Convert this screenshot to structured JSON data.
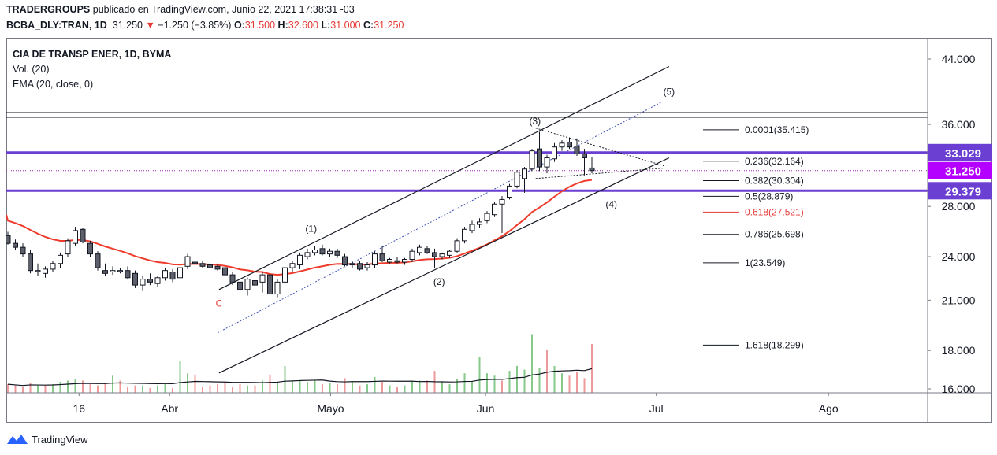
{
  "header": {
    "author": "TRADERGROUPS",
    "published": "publicado en TradingView.com, Junio 22, 2021 17:38:31 -03",
    "symbol": "BCBA_DLY:TRAN, 1D",
    "last": "31.250",
    "change": "−1.250 (−3.85%)",
    "o_label": "O:",
    "o": "31.500",
    "h_label": "H:",
    "h": "32.600",
    "l_label": "L:",
    "l": "31.000",
    "c_label": "C:",
    "c": "31.250"
  },
  "legend": {
    "title": "CIA DE TRANSP ENER, 1D, BYMA",
    "vol": "Vol. (20)",
    "ema": "EMA (20, close, 0)"
  },
  "footer": {
    "brand": "TradingView"
  },
  "colors": {
    "up": "#ffffff",
    "down": "#5d606b",
    "ema": "#ef3b2c",
    "vol_up": "#86c98b",
    "vol_down": "#ef9a9a",
    "level": "#6a3fd1",
    "price_badge": "#b400ff",
    "wave_c": "#e53935"
  },
  "chart_data": {
    "type": "candlestick",
    "y_axis_labels": [
      "44.000",
      "36.000",
      "28.000",
      "24.000",
      "21.000",
      "18.000",
      "16.000"
    ],
    "x_axis_labels": [
      "16",
      "Abr",
      "Mayo",
      "Jun",
      "Jul",
      "Ago"
    ],
    "price_badges": [
      {
        "label": "33.029",
        "value": 33.029
      },
      {
        "label": "31.250",
        "value": 31.25
      },
      {
        "label": "29.379",
        "value": 29.379
      }
    ],
    "fib_levels": [
      {
        "label": "0.0001(35.415)",
        "value": 35.415
      },
      {
        "label": "0.236(32.164)",
        "value": 32.164
      },
      {
        "label": "0.382(30.304)",
        "value": 30.304
      },
      {
        "label": "0.5(28.879)",
        "value": 28.879
      },
      {
        "label": "0.618(27.521)",
        "value": 27.521
      },
      {
        "label": "0.786(25.698)",
        "value": 25.698
      },
      {
        "label": "1(23.549)",
        "value": 23.549
      },
      {
        "label": "1.618(18.299)",
        "value": 18.299
      }
    ],
    "wave_labels": [
      "(1)",
      "(2)",
      "(3)",
      "(4)",
      "(5)",
      "C"
    ],
    "candles": [
      {
        "o": 25.6,
        "h": 25.9,
        "l": 24.9,
        "c": 25.0
      },
      {
        "o": 25.0,
        "h": 25.3,
        "l": 24.5,
        "c": 24.7
      },
      {
        "o": 24.7,
        "h": 25.0,
        "l": 24.0,
        "c": 24.2
      },
      {
        "o": 24.2,
        "h": 24.5,
        "l": 22.8,
        "c": 23.0
      },
      {
        "o": 23.0,
        "h": 23.5,
        "l": 22.6,
        "c": 22.9
      },
      {
        "o": 22.8,
        "h": 23.3,
        "l": 22.5,
        "c": 23.1
      },
      {
        "o": 23.1,
        "h": 23.7,
        "l": 22.9,
        "c": 23.5
      },
      {
        "o": 23.5,
        "h": 24.3,
        "l": 23.2,
        "c": 24.1
      },
      {
        "o": 24.2,
        "h": 25.4,
        "l": 24.0,
        "c": 25.2
      },
      {
        "o": 25.0,
        "h": 26.3,
        "l": 24.8,
        "c": 26.0
      },
      {
        "o": 26.1,
        "h": 26.2,
        "l": 25.0,
        "c": 25.1
      },
      {
        "o": 25.0,
        "h": 25.2,
        "l": 24.0,
        "c": 24.2
      },
      {
        "o": 24.2,
        "h": 24.4,
        "l": 23.0,
        "c": 23.2
      },
      {
        "o": 23.0,
        "h": 23.5,
        "l": 22.6,
        "c": 22.8
      },
      {
        "o": 22.9,
        "h": 23.3,
        "l": 22.7,
        "c": 23.0
      },
      {
        "o": 23.0,
        "h": 23.2,
        "l": 22.8,
        "c": 22.9
      },
      {
        "o": 23.0,
        "h": 23.3,
        "l": 22.4,
        "c": 22.5
      },
      {
        "o": 22.8,
        "h": 23.0,
        "l": 21.8,
        "c": 22.0
      },
      {
        "o": 22.0,
        "h": 22.6,
        "l": 21.6,
        "c": 22.4
      },
      {
        "o": 22.4,
        "h": 22.8,
        "l": 22.0,
        "c": 22.2
      },
      {
        "o": 22.1,
        "h": 22.6,
        "l": 21.9,
        "c": 22.5
      },
      {
        "o": 22.5,
        "h": 23.2,
        "l": 22.3,
        "c": 23.0
      },
      {
        "o": 22.9,
        "h": 23.1,
        "l": 22.2,
        "c": 22.4
      },
      {
        "o": 22.5,
        "h": 23.4,
        "l": 22.3,
        "c": 23.2
      },
      {
        "o": 23.3,
        "h": 24.2,
        "l": 23.1,
        "c": 24.0
      },
      {
        "o": 23.6,
        "h": 23.9,
        "l": 23.3,
        "c": 23.5
      },
      {
        "o": 23.5,
        "h": 23.7,
        "l": 23.2,
        "c": 23.3
      },
      {
        "o": 23.4,
        "h": 23.6,
        "l": 23.1,
        "c": 23.2
      },
      {
        "o": 23.3,
        "h": 23.5,
        "l": 23.0,
        "c": 23.1
      },
      {
        "o": 23.2,
        "h": 23.4,
        "l": 22.6,
        "c": 22.7
      },
      {
        "o": 22.7,
        "h": 22.9,
        "l": 22.0,
        "c": 22.2
      },
      {
        "o": 22.2,
        "h": 22.5,
        "l": 21.5,
        "c": 21.7
      },
      {
        "o": 21.7,
        "h": 22.5,
        "l": 21.3,
        "c": 22.4
      },
      {
        "o": 22.3,
        "h": 22.6,
        "l": 21.8,
        "c": 22.0
      },
      {
        "o": 22.2,
        "h": 22.9,
        "l": 21.5,
        "c": 22.7
      },
      {
        "o": 22.7,
        "h": 22.8,
        "l": 21.1,
        "c": 21.4
      },
      {
        "o": 21.4,
        "h": 22.4,
        "l": 21.2,
        "c": 22.2
      },
      {
        "o": 22.2,
        "h": 23.4,
        "l": 22.0,
        "c": 23.2
      },
      {
        "o": 23.2,
        "h": 23.7,
        "l": 22.9,
        "c": 23.5
      },
      {
        "o": 23.4,
        "h": 24.3,
        "l": 23.1,
        "c": 24.1
      },
      {
        "o": 24.0,
        "h": 24.6,
        "l": 23.8,
        "c": 24.3
      },
      {
        "o": 24.3,
        "h": 24.8,
        "l": 24.1,
        "c": 24.5
      },
      {
        "o": 24.6,
        "h": 24.9,
        "l": 24.1,
        "c": 24.2
      },
      {
        "o": 24.2,
        "h": 24.6,
        "l": 24.0,
        "c": 24.4
      },
      {
        "o": 24.4,
        "h": 24.6,
        "l": 23.9,
        "c": 24.1
      },
      {
        "o": 24.0,
        "h": 24.2,
        "l": 23.3,
        "c": 23.4
      },
      {
        "o": 23.4,
        "h": 23.7,
        "l": 23.2,
        "c": 23.5
      },
      {
        "o": 23.5,
        "h": 23.7,
        "l": 23.0,
        "c": 23.1
      },
      {
        "o": 23.2,
        "h": 23.6,
        "l": 23.0,
        "c": 23.4
      },
      {
        "o": 23.4,
        "h": 24.4,
        "l": 23.2,
        "c": 24.2
      },
      {
        "o": 24.2,
        "h": 24.8,
        "l": 23.6,
        "c": 23.7
      },
      {
        "o": 23.6,
        "h": 23.9,
        "l": 23.5,
        "c": 23.8
      },
      {
        "o": 23.7,
        "h": 24.0,
        "l": 23.5,
        "c": 23.6
      },
      {
        "o": 23.6,
        "h": 23.9,
        "l": 23.4,
        "c": 23.8
      },
      {
        "o": 23.8,
        "h": 24.6,
        "l": 23.6,
        "c": 24.4
      },
      {
        "o": 24.3,
        "h": 24.9,
        "l": 24.1,
        "c": 24.7
      },
      {
        "o": 24.6,
        "h": 24.8,
        "l": 24.2,
        "c": 24.3
      },
      {
        "o": 24.3,
        "h": 24.6,
        "l": 23.2,
        "c": 24.0
      },
      {
        "o": 24.0,
        "h": 24.3,
        "l": 23.8,
        "c": 24.2
      },
      {
        "o": 24.1,
        "h": 24.5,
        "l": 23.9,
        "c": 24.4
      },
      {
        "o": 24.4,
        "h": 25.4,
        "l": 24.3,
        "c": 25.2
      },
      {
        "o": 25.2,
        "h": 26.3,
        "l": 25.0,
        "c": 26.1
      },
      {
        "o": 26.0,
        "h": 26.8,
        "l": 25.8,
        "c": 26.5
      },
      {
        "o": 26.5,
        "h": 27.0,
        "l": 26.2,
        "c": 26.7
      },
      {
        "o": 26.8,
        "h": 27.6,
        "l": 26.6,
        "c": 27.4
      },
      {
        "o": 27.3,
        "h": 28.4,
        "l": 27.1,
        "c": 28.2
      },
      {
        "o": 28.2,
        "h": 28.9,
        "l": 25.8,
        "c": 28.6
      },
      {
        "o": 28.8,
        "h": 30.0,
        "l": 28.6,
        "c": 29.8
      },
      {
        "o": 29.8,
        "h": 31.3,
        "l": 29.6,
        "c": 31.1
      },
      {
        "o": 30.5,
        "h": 31.6,
        "l": 29.2,
        "c": 31.4
      },
      {
        "o": 31.4,
        "h": 33.4,
        "l": 31.2,
        "c": 33.2
      },
      {
        "o": 33.4,
        "h": 35.2,
        "l": 31.2,
        "c": 31.6
      },
      {
        "o": 31.6,
        "h": 32.8,
        "l": 31.0,
        "c": 32.5
      },
      {
        "o": 32.4,
        "h": 34.0,
        "l": 32.1,
        "c": 33.6
      },
      {
        "o": 33.6,
        "h": 34.3,
        "l": 33.2,
        "c": 34.0
      },
      {
        "o": 34.1,
        "h": 34.6,
        "l": 33.4,
        "c": 33.6
      },
      {
        "o": 33.7,
        "h": 34.5,
        "l": 32.7,
        "c": 32.9
      },
      {
        "o": 32.9,
        "h": 33.4,
        "l": 30.8,
        "c": 32.5
      },
      {
        "o": 31.5,
        "h": 32.6,
        "l": 31.0,
        "c": 31.25
      }
    ],
    "volume": [
      {
        "v": 0.7,
        "d": true
      },
      {
        "v": 0.6,
        "d": true
      },
      {
        "v": 0.5,
        "d": true
      },
      {
        "v": 0.8,
        "d": true
      },
      {
        "v": 0.6,
        "d": false
      },
      {
        "v": 0.6,
        "d": true
      },
      {
        "v": 0.7,
        "d": false
      },
      {
        "v": 0.9,
        "d": false
      },
      {
        "v": 1.0,
        "d": false
      },
      {
        "v": 1.1,
        "d": false
      },
      {
        "v": 1.0,
        "d": true
      },
      {
        "v": 0.7,
        "d": true
      },
      {
        "v": 0.6,
        "d": true
      },
      {
        "v": 0.8,
        "d": true
      },
      {
        "v": 1.4,
        "d": false
      },
      {
        "v": 1.0,
        "d": true
      },
      {
        "v": 0.5,
        "d": true
      },
      {
        "v": 0.6,
        "d": true
      },
      {
        "v": 0.6,
        "d": false
      },
      {
        "v": 0.4,
        "d": true
      },
      {
        "v": 0.6,
        "d": false
      },
      {
        "v": 0.7,
        "d": false
      },
      {
        "v": 0.4,
        "d": true
      },
      {
        "v": 2.6,
        "d": false
      },
      {
        "v": 1.6,
        "d": false
      },
      {
        "v": 1.5,
        "d": true
      },
      {
        "v": 0.5,
        "d": true
      },
      {
        "v": 0.6,
        "d": true
      },
      {
        "v": 0.7,
        "d": true
      },
      {
        "v": 0.9,
        "d": true
      },
      {
        "v": 0.5,
        "d": true
      },
      {
        "v": 0.7,
        "d": true
      },
      {
        "v": 0.6,
        "d": false
      },
      {
        "v": 0.6,
        "d": true
      },
      {
        "v": 1.0,
        "d": false
      },
      {
        "v": 1.5,
        "d": true
      },
      {
        "v": 0.9,
        "d": false
      },
      {
        "v": 2.2,
        "d": false
      },
      {
        "v": 1.0,
        "d": false
      },
      {
        "v": 1.0,
        "d": false
      },
      {
        "v": 0.9,
        "d": false
      },
      {
        "v": 1.0,
        "d": false
      },
      {
        "v": 0.7,
        "d": true
      },
      {
        "v": 0.8,
        "d": false
      },
      {
        "v": 0.7,
        "d": true
      },
      {
        "v": 1.2,
        "d": true
      },
      {
        "v": 0.9,
        "d": false
      },
      {
        "v": 0.6,
        "d": true
      },
      {
        "v": 0.7,
        "d": false
      },
      {
        "v": 1.3,
        "d": false
      },
      {
        "v": 0.9,
        "d": true
      },
      {
        "v": 0.6,
        "d": false
      },
      {
        "v": 0.5,
        "d": true
      },
      {
        "v": 0.6,
        "d": false
      },
      {
        "v": 1.0,
        "d": false
      },
      {
        "v": 1.0,
        "d": false
      },
      {
        "v": 1.0,
        "d": true
      },
      {
        "v": 1.8,
        "d": true
      },
      {
        "v": 0.9,
        "d": false
      },
      {
        "v": 0.7,
        "d": false
      },
      {
        "v": 1.1,
        "d": false
      },
      {
        "v": 1.6,
        "d": false
      },
      {
        "v": 0.9,
        "d": false
      },
      {
        "v": 2.9,
        "d": false
      },
      {
        "v": 1.6,
        "d": false
      },
      {
        "v": 1.4,
        "d": false
      },
      {
        "v": 1.0,
        "d": true
      },
      {
        "v": 1.8,
        "d": false
      },
      {
        "v": 2.2,
        "d": false
      },
      {
        "v": 1.9,
        "d": false
      },
      {
        "v": 4.8,
        "d": false
      },
      {
        "v": 2.0,
        "d": false
      },
      {
        "v": 3.5,
        "d": true
      },
      {
        "v": 2.2,
        "d": false
      },
      {
        "v": 1.6,
        "d": false
      },
      {
        "v": 1.4,
        "d": true
      },
      {
        "v": 1.7,
        "d": true
      },
      {
        "v": 1.2,
        "d": true
      },
      {
        "v": 4.0,
        "d": true
      }
    ]
  }
}
